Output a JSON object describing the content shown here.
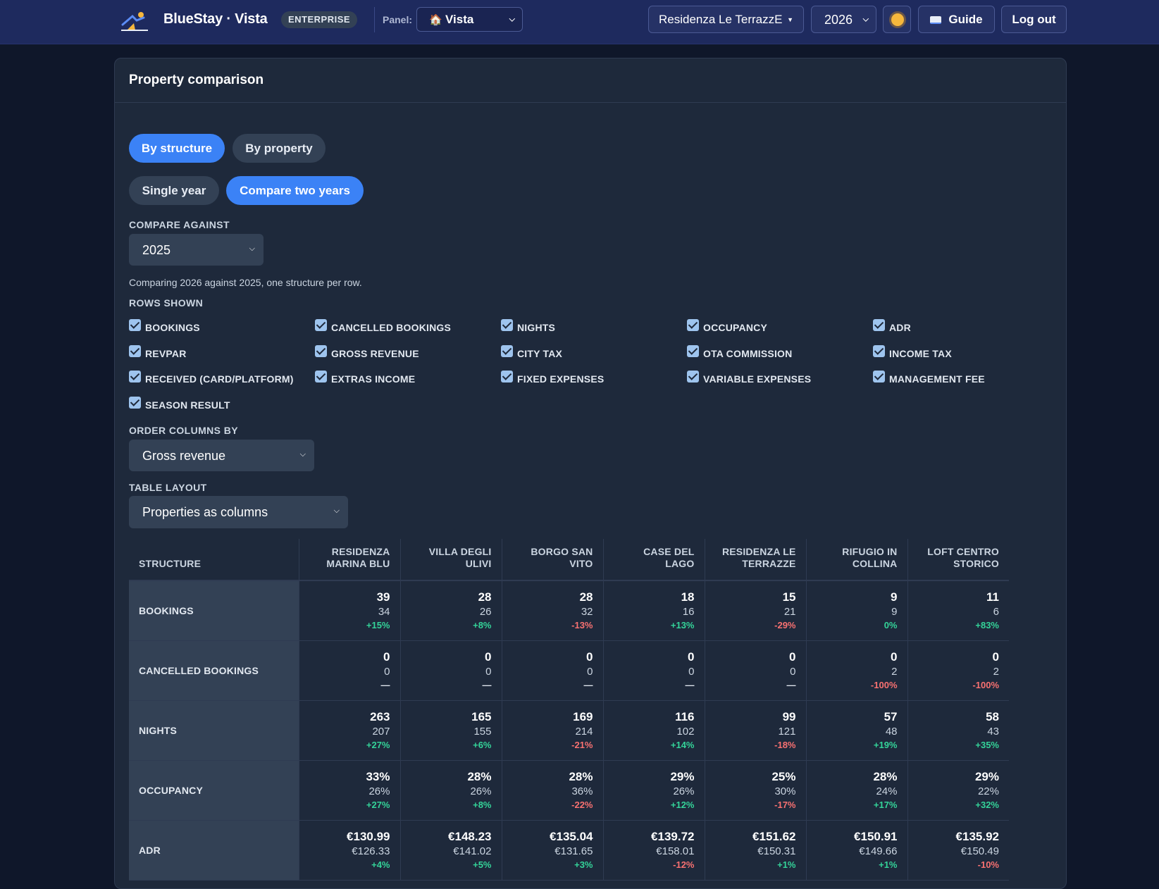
{
  "header": {
    "brand": "BlueStay · Vista",
    "badge": "ENTERPRISE",
    "panel_label": "Panel:",
    "panel_value": "Vista",
    "property_value": "Residenza Le TerrazzE",
    "year_value": "2026",
    "guide_label": "Guide",
    "logout_label": "Log out"
  },
  "card": {
    "title": "Property comparison",
    "mode_tabs": [
      "By structure",
      "By property"
    ],
    "year_tabs": [
      "Single year",
      "Compare two years"
    ],
    "compare_label": "COMPARE AGAINST",
    "compare_value": "2025",
    "note": "Comparing 2026 against 2025, one structure per row.",
    "rows_label": "ROWS SHOWN",
    "rows": [
      "BOOKINGS",
      "CANCELLED BOOKINGS",
      "NIGHTS",
      "OCCUPANCY",
      "ADR",
      "REVPAR",
      "GROSS REVENUE",
      "CITY TAX",
      "OTA COMMISSION",
      "INCOME TAX",
      "RECEIVED (CARD/PLATFORM)",
      "EXTRAS INCOME",
      "FIXED EXPENSES",
      "VARIABLE EXPENSES",
      "MANAGEMENT FEE",
      "SEASON RESULT"
    ],
    "order_label": "ORDER COLUMNS BY",
    "order_value": "Gross revenue",
    "layout_label": "TABLE LAYOUT",
    "layout_value": "Properties as columns"
  },
  "table": {
    "corner": "STRUCTURE",
    "columns": [
      [
        "RESIDENZA",
        "MARINA BLU"
      ],
      [
        "VILLA DEGLI",
        "ULIVI"
      ],
      [
        "BORGO SAN",
        "VITO"
      ],
      [
        "CASE DEL LAGO"
      ],
      [
        "RESIDENZA LE",
        "TERRAZZE"
      ],
      [
        "RIFUGIO IN",
        "COLLINA"
      ],
      [
        "LOFT CENTRO",
        "STORICO"
      ]
    ],
    "rows": [
      {
        "label": "BOOKINGS",
        "cells": [
          [
            "39",
            "34",
            "+15%"
          ],
          [
            "28",
            "26",
            "+8%"
          ],
          [
            "28",
            "32",
            "-13%"
          ],
          [
            "18",
            "16",
            "+13%"
          ],
          [
            "15",
            "21",
            "-29%"
          ],
          [
            "9",
            "9",
            "0%"
          ],
          [
            "11",
            "6",
            "+83%"
          ]
        ]
      },
      {
        "label": "CANCELLED BOOKINGS",
        "cells": [
          [
            "0",
            "0",
            "—"
          ],
          [
            "0",
            "0",
            "—"
          ],
          [
            "0",
            "0",
            "—"
          ],
          [
            "0",
            "0",
            "—"
          ],
          [
            "0",
            "0",
            "—"
          ],
          [
            "0",
            "2",
            "-100%"
          ],
          [
            "0",
            "2",
            "-100%"
          ]
        ]
      },
      {
        "label": "NIGHTS",
        "cells": [
          [
            "263",
            "207",
            "+27%"
          ],
          [
            "165",
            "155",
            "+6%"
          ],
          [
            "169",
            "214",
            "-21%"
          ],
          [
            "116",
            "102",
            "+14%"
          ],
          [
            "99",
            "121",
            "-18%"
          ],
          [
            "57",
            "48",
            "+19%"
          ],
          [
            "58",
            "43",
            "+35%"
          ]
        ]
      },
      {
        "label": "OCCUPANCY",
        "cells": [
          [
            "33%",
            "26%",
            "+27%"
          ],
          [
            "28%",
            "26%",
            "+8%"
          ],
          [
            "28%",
            "36%",
            "-22%"
          ],
          [
            "29%",
            "26%",
            "+12%"
          ],
          [
            "25%",
            "30%",
            "-17%"
          ],
          [
            "28%",
            "24%",
            "+17%"
          ],
          [
            "29%",
            "22%",
            "+32%"
          ]
        ]
      },
      {
        "label": "ADR",
        "cells": [
          [
            "€130.99",
            "€126.33",
            "+4%"
          ],
          [
            "€148.23",
            "€141.02",
            "+5%"
          ],
          [
            "€135.04",
            "€131.65",
            "+3%"
          ],
          [
            "€139.72",
            "€158.01",
            "-12%"
          ],
          [
            "€151.62",
            "€150.31",
            "+1%"
          ],
          [
            "€150.91",
            "€149.66",
            "+1%"
          ],
          [
            "€135.92",
            "€150.49",
            "-10%"
          ]
        ]
      }
    ]
  }
}
